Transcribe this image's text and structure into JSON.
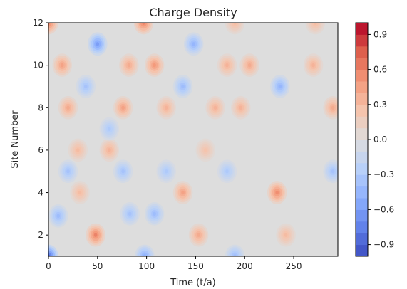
{
  "chart_data": {
    "type": "heatmap",
    "subtype": "filled-contour",
    "title": "Charge Density",
    "xlabel": "Time (t/a)",
    "ylabel": "Site Number",
    "xlim": [
      0,
      295
    ],
    "ylim": [
      1,
      12
    ],
    "x_ticks": [
      0,
      50,
      100,
      150,
      200,
      250
    ],
    "x_tick_labels": [
      "0",
      "50",
      "100",
      "150",
      "200",
      "250"
    ],
    "y_ticks": [
      2,
      4,
      6,
      8,
      10,
      12
    ],
    "y_tick_labels": [
      "2",
      "4",
      "6",
      "8",
      "10",
      "12"
    ],
    "colormap": "coolwarm",
    "color_limits": [
      -1.0,
      1.0
    ],
    "colorbar": {
      "ticks": [
        0.9,
        0.6,
        0.3,
        0.0,
        -0.3,
        -0.6,
        -0.9
      ],
      "tick_labels": [
        "0.9",
        "0.6",
        "0.3",
        "0.0",
        "−0.3",
        "−0.6",
        "−0.9"
      ]
    },
    "grid": false,
    "sites": [
      1,
      2,
      3,
      4,
      5,
      6,
      7,
      8,
      9,
      10,
      11,
      12
    ],
    "features": [
      {
        "t": 0,
        "site": 1,
        "value": -0.85
      },
      {
        "t": 48,
        "site": 2,
        "value": 0.6
      },
      {
        "t": 153,
        "site": 2,
        "value": 0.4
      },
      {
        "t": 242,
        "site": 2,
        "value": 0.3
      },
      {
        "t": 10,
        "site": 2.9,
        "value": -0.4
      },
      {
        "t": 83,
        "site": 3,
        "value": -0.35
      },
      {
        "t": 108,
        "site": 3,
        "value": -0.4
      },
      {
        "t": 98,
        "site": 1,
        "value": -0.5
      },
      {
        "t": 190,
        "site": 1,
        "value": -0.4
      },
      {
        "t": 32,
        "site": 4,
        "value": 0.3
      },
      {
        "t": 137,
        "site": 4,
        "value": 0.45
      },
      {
        "t": 233,
        "site": 4,
        "value": 0.55
      },
      {
        "t": 20,
        "site": 5,
        "value": -0.35
      },
      {
        "t": 76,
        "site": 5,
        "value": -0.35
      },
      {
        "t": 120,
        "site": 5,
        "value": -0.3
      },
      {
        "t": 182,
        "site": 5,
        "value": -0.3
      },
      {
        "t": 290,
        "site": 5,
        "value": -0.35
      },
      {
        "t": 30,
        "site": 6,
        "value": 0.3
      },
      {
        "t": 62,
        "site": 6,
        "value": 0.35
      },
      {
        "t": 160,
        "site": 6,
        "value": 0.25
      },
      {
        "t": 62,
        "site": 7,
        "value": -0.3
      },
      {
        "t": 20,
        "site": 8,
        "value": 0.4
      },
      {
        "t": 76,
        "site": 8,
        "value": 0.45
      },
      {
        "t": 120,
        "site": 8,
        "value": 0.35
      },
      {
        "t": 170,
        "site": 8,
        "value": 0.35
      },
      {
        "t": 196,
        "site": 8,
        "value": 0.35
      },
      {
        "t": 290,
        "site": 8,
        "value": 0.4
      },
      {
        "t": 38,
        "site": 9,
        "value": -0.35
      },
      {
        "t": 137,
        "site": 9,
        "value": -0.4
      },
      {
        "t": 236,
        "site": 9,
        "value": -0.45
      },
      {
        "t": 14,
        "site": 10,
        "value": 0.45
      },
      {
        "t": 82,
        "site": 10,
        "value": 0.4
      },
      {
        "t": 108,
        "site": 10,
        "value": 0.5
      },
      {
        "t": 182,
        "site": 10,
        "value": 0.35
      },
      {
        "t": 205,
        "site": 10,
        "value": 0.4
      },
      {
        "t": 270,
        "site": 10,
        "value": 0.35
      },
      {
        "t": 0,
        "site": 12,
        "value": 0.6
      },
      {
        "t": 97,
        "site": 12,
        "value": 0.6
      },
      {
        "t": 190,
        "site": 12,
        "value": 0.3
      },
      {
        "t": 272,
        "site": 12,
        "value": 0.3
      },
      {
        "t": 50,
        "site": 11,
        "value": -0.6
      },
      {
        "t": 148,
        "site": 11,
        "value": -0.45
      }
    ]
  }
}
